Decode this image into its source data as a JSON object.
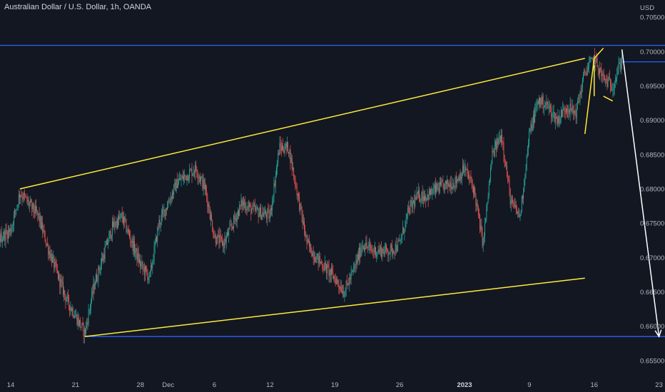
{
  "header": {
    "title": "Australian Dollar / U.S. Dollar, 1h, OANDA"
  },
  "chart_data": {
    "type": "candlestick",
    "title": "Australian Dollar / U.S. Dollar, 1h, OANDA",
    "y_unit": "USD",
    "ylim": [
      0.6525,
      0.7075
    ],
    "y_ticks": [
      "0.70500",
      "0.70000",
      "0.69500",
      "0.69000",
      "0.68500",
      "0.68000",
      "0.67500",
      "0.67000",
      "0.66500",
      "0.66000",
      "0.65500"
    ],
    "x_ticks": [
      {
        "label": "14",
        "bold": false
      },
      {
        "label": "21",
        "bold": false
      },
      {
        "label": "28",
        "bold": false
      },
      {
        "label": "Dec",
        "bold": false
      },
      {
        "label": "6",
        "bold": false
      },
      {
        "label": "12",
        "bold": false
      },
      {
        "label": "19",
        "bold": false
      },
      {
        "label": "26",
        "bold": false
      },
      {
        "label": "2023",
        "bold": true
      },
      {
        "label": "9",
        "bold": false
      },
      {
        "label": "16",
        "bold": false
      },
      {
        "label": "23",
        "bold": false
      }
    ],
    "x_tick_dates": [
      "2022-11-14",
      "2022-11-21",
      "2022-11-28",
      "2022-12-01",
      "2022-12-06",
      "2022-12-12",
      "2022-12-19",
      "2022-12-26",
      "2023-01-02",
      "2023-01-09",
      "2023-01-16",
      "2023-01-23"
    ],
    "price_path": [
      [
        "2022-11-10",
        0.67
      ],
      [
        "2022-11-14",
        0.674
      ],
      [
        "2022-11-15",
        0.6795
      ],
      [
        "2022-11-17",
        0.676
      ],
      [
        "2022-11-18",
        0.6715
      ],
      [
        "2022-11-20",
        0.664
      ],
      [
        "2022-11-22",
        0.659
      ],
      [
        "2022-11-23",
        0.666
      ],
      [
        "2022-11-25",
        0.6745
      ],
      [
        "2022-11-26",
        0.676
      ],
      [
        "2022-11-28",
        0.669
      ],
      [
        "2022-11-29",
        0.667
      ],
      [
        "2022-11-30",
        0.675
      ],
      [
        "2022-12-02",
        0.681
      ],
      [
        "2022-12-04",
        0.683
      ],
      [
        "2022-12-05",
        0.68
      ],
      [
        "2022-12-06",
        0.673
      ],
      [
        "2022-12-07",
        0.672
      ],
      [
        "2022-12-09",
        0.678
      ],
      [
        "2022-12-10",
        0.677
      ],
      [
        "2022-12-12",
        0.676
      ],
      [
        "2022-12-13",
        0.686
      ],
      [
        "2022-12-14",
        0.686
      ],
      [
        "2022-12-16",
        0.672
      ],
      [
        "2022-12-17",
        0.67
      ],
      [
        "2022-12-19",
        0.667
      ],
      [
        "2022-12-20",
        0.665
      ],
      [
        "2022-12-21",
        0.668
      ],
      [
        "2022-12-22",
        0.672
      ],
      [
        "2022-12-23",
        0.671
      ],
      [
        "2022-12-25",
        0.671
      ],
      [
        "2022-12-26",
        0.672
      ],
      [
        "2022-12-27",
        0.677
      ],
      [
        "2022-12-28",
        0.679
      ],
      [
        "2022-12-29",
        0.679
      ],
      [
        "2022-12-30",
        0.68
      ],
      [
        "2023-01-01",
        0.681
      ],
      [
        "2023-01-02",
        0.683
      ],
      [
        "2023-01-03",
        0.68
      ],
      [
        "2023-01-04",
        0.672
      ],
      [
        "2023-01-05",
        0.685
      ],
      [
        "2023-01-06",
        0.688
      ],
      [
        "2023-01-07",
        0.678
      ],
      [
        "2023-01-08",
        0.676
      ],
      [
        "2023-01-09",
        0.688
      ],
      [
        "2023-01-10",
        0.693
      ],
      [
        "2023-01-11",
        0.692
      ],
      [
        "2023-01-12",
        0.69
      ],
      [
        "2023-01-13",
        0.692
      ],
      [
        "2023-01-14",
        0.691
      ],
      [
        "2023-01-15",
        0.697
      ],
      [
        "2023-01-16",
        0.699
      ],
      [
        "2023-01-17",
        0.696
      ],
      [
        "2023-01-18",
        0.695
      ],
      [
        "2023-01-19",
        0.699
      ]
    ],
    "annotations": {
      "horizontal_lines": [
        {
          "y": 0.7009,
          "x_from": "2022-11-09",
          "x_to": "2023-01-26",
          "color": "#2962ff"
        },
        {
          "y": 0.6985,
          "x_from": "2023-01-19",
          "x_to": "2023-01-26",
          "color": "#2962ff"
        },
        {
          "y": 0.6585,
          "x_from": "2022-11-22",
          "x_to": "2023-01-26",
          "color": "#2962ff"
        }
      ],
      "trendlines": [
        {
          "p1": [
            "2022-11-15",
            0.68
          ],
          "p2": [
            "2023-01-15",
            0.699
          ],
          "color": "#ffeb3b"
        },
        {
          "p1": [
            "2022-11-22",
            0.6585
          ],
          "p2": [
            "2023-01-15",
            0.667
          ],
          "color": "#ffeb3b"
        },
        {
          "p1": [
            "2023-01-15",
            0.688
          ],
          "p2": [
            "2023-01-16",
            0.699
          ],
          "color": "#ffeb3b"
        },
        {
          "p1": [
            "2023-01-16",
            0.698
          ],
          "p2": [
            "2023-01-16",
            0.6935
          ],
          "color": "#ffeb3b"
        },
        {
          "p1": [
            "2023-01-16",
            0.699
          ],
          "p2": [
            "2023-01-17",
            0.7005
          ],
          "color": "#ffeb3b"
        },
        {
          "p1": [
            "2023-01-17",
            0.6935
          ],
          "p2": [
            "2023-01-18",
            0.6928
          ],
          "color": "#ffeb3b"
        }
      ],
      "projection_arrow": {
        "from": [
          "2023-01-19",
          0.7003
        ],
        "to": [
          "2023-01-23",
          0.6585
        ],
        "color": "#ffffff"
      }
    },
    "colors": {
      "up": "#26a69a",
      "down": "#ef5350",
      "background": "#131722"
    }
  }
}
